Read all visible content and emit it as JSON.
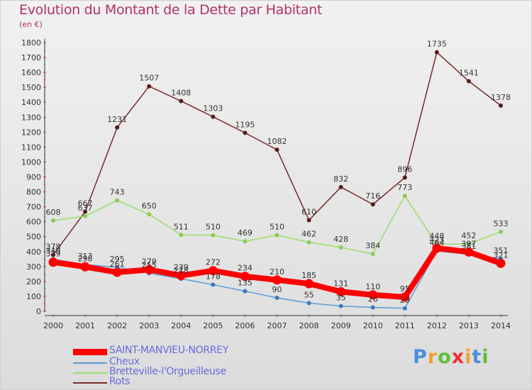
{
  "title": "Evolution du Montant de la Dette par Habitant",
  "subtitle": "(en €)",
  "logo": "Proxiti",
  "colors": {
    "title": "#b0306a",
    "axis": "#333333",
    "grid_tick": "#cc3333",
    "legend_text": "#6a6adf"
  },
  "chart_data": {
    "type": "line",
    "x": [
      "2000",
      "2001",
      "2002",
      "2003",
      "2004",
      "2005",
      "2006",
      "2007",
      "2008",
      "2009",
      "2010",
      "2011",
      "2012",
      "2013",
      "2014"
    ],
    "ylim": [
      0,
      1800
    ],
    "yticks": [
      0,
      100,
      200,
      300,
      400,
      500,
      600,
      700,
      800,
      900,
      1000,
      1100,
      1200,
      1300,
      1400,
      1500,
      1600,
      1700,
      1800
    ],
    "series": [
      {
        "name": "SAINT-MANVIEU-NORREY",
        "color": "#ff0000",
        "values": [
          329,
          298,
          261,
          279,
          239,
          272,
          234,
          210,
          185,
          131,
          110,
          95,
          423,
          397,
          321
        ]
      },
      {
        "name": "Cheux",
        "color": "#5b9bd5",
        "values": [
          349,
          313,
          295,
          255,
          218,
          178,
          135,
          90,
          55,
          35,
          26,
          20,
          404,
          381,
          351
        ]
      },
      {
        "name": "Bretteville-l'Orgueilleuse",
        "color": "#99dd66",
        "values": [
          608,
          637,
          743,
          650,
          511,
          510,
          469,
          510,
          462,
          428,
          384,
          773,
          448,
          452,
          533
        ]
      },
      {
        "name": "Rots",
        "color": "#7a2a2a",
        "values": [
          378,
          667,
          1231,
          1507,
          1408,
          1303,
          1195,
          1082,
          610,
          832,
          716,
          896,
          1735,
          1541,
          1378
        ]
      }
    ],
    "labels": {
      "SAINT-MANVIEU-NORREY": [
        "329",
        "298",
        "261",
        "279",
        "239",
        "272",
        "234",
        "210",
        "185",
        "131",
        "110",
        "95",
        "423",
        "397",
        "321"
      ],
      "Cheux": [
        "349",
        "313",
        "295",
        "255",
        "218",
        "178",
        "135",
        "90",
        "55",
        "35",
        "26",
        "20",
        "404",
        "381",
        "351"
      ],
      "Bretteville-l'Orgueilleuse": [
        "608",
        "637",
        "743",
        "650",
        "511",
        "510",
        "469",
        "510",
        "462",
        "428",
        "384",
        "773",
        "448",
        "452",
        "533"
      ],
      "Rots": [
        "378",
        "667",
        "1231",
        "1507",
        "1408",
        "1303",
        "1195",
        "1082",
        "610",
        "832",
        "716",
        "896",
        "1735",
        "1541",
        "1378"
      ]
    }
  }
}
